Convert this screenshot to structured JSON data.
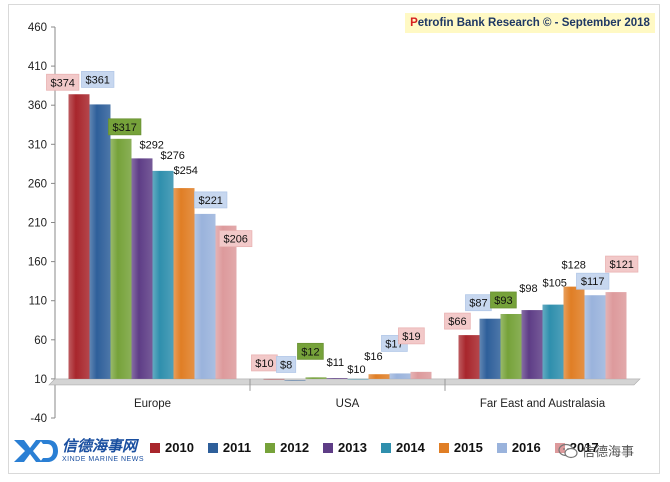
{
  "banner": {
    "prefix": "P",
    "rest": "etrofin Bank Research © - September 2018"
  },
  "logo": {
    "cn": "信德海事网",
    "en": "XINDE MARINE NEWS"
  },
  "wechat": {
    "label": "信德海事"
  },
  "chart_data": {
    "type": "bar",
    "title": "",
    "xlabel": "",
    "ylabel": "",
    "ylim": [
      -40,
      460
    ],
    "yticks": [
      -40,
      10,
      60,
      110,
      160,
      210,
      260,
      310,
      360,
      410,
      460
    ],
    "categories": [
      "Europe",
      "USA",
      "Far East and Australasia"
    ],
    "series": [
      {
        "name": "2010",
        "color": "#a8262c",
        "values": [
          374,
          10,
          66
        ],
        "labels": [
          "$374",
          "$10",
          "$66"
        ]
      },
      {
        "name": "2011",
        "color": "#2e5f9a",
        "values": [
          361,
          8,
          87
        ],
        "labels": [
          "$361",
          "$8",
          "$87"
        ]
      },
      {
        "name": "2012",
        "color": "#76a23a",
        "values": [
          317,
          12,
          93
        ],
        "labels": [
          "$317",
          "$12",
          "$93"
        ]
      },
      {
        "name": "2013",
        "color": "#5e3d86",
        "values": [
          292,
          11,
          98
        ],
        "labels": [
          "$292",
          "$11",
          "$98"
        ]
      },
      {
        "name": "2014",
        "color": "#2f8fad",
        "values": [
          276,
          10,
          105
        ],
        "labels": [
          "$276",
          "$10",
          "$105"
        ]
      },
      {
        "name": "2015",
        "color": "#e07e25",
        "values": [
          254,
          16,
          128
        ],
        "labels": [
          "$254",
          "$16",
          "$128"
        ]
      },
      {
        "name": "2016",
        "color": "#9ab3dc",
        "values": [
          221,
          17,
          117
        ],
        "labels": [
          "$221",
          "$17",
          "$117"
        ]
      },
      {
        "name": "2017",
        "color": "#dd9a9c",
        "values": [
          206,
          19,
          121
        ],
        "labels": [
          "$206",
          "$19",
          "$121"
        ]
      }
    ],
    "legend_position": "bottom",
    "grid": false
  }
}
